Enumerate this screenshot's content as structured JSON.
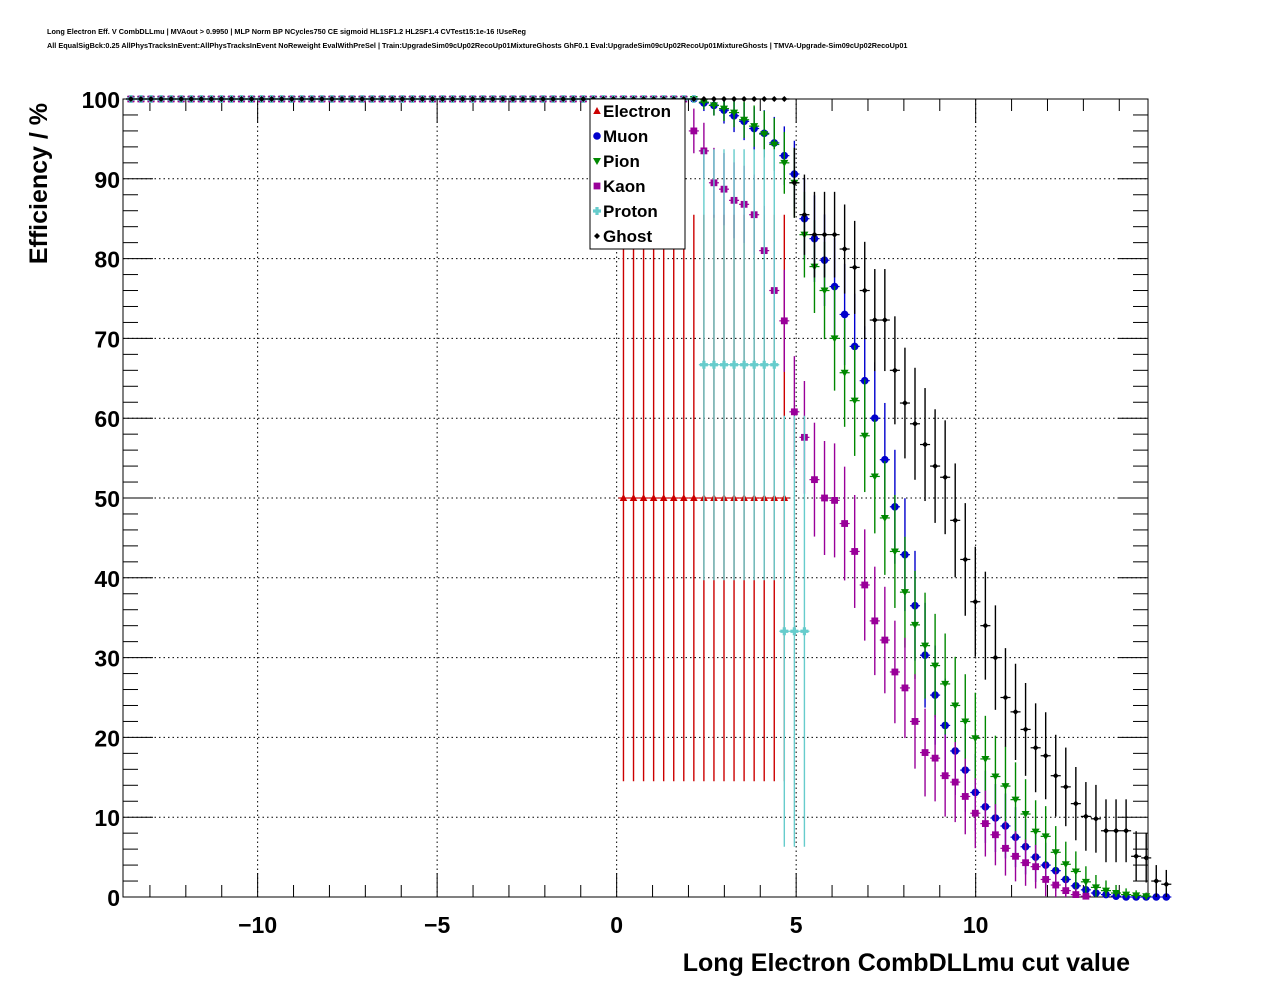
{
  "header": {
    "title_line1": "Long Electron Eff. V CombDLLmu | MVAout > 0.9950 | MLP Norm BP NCycles750 CE sigmoid HL1SF1.2 HL2SF1.4 CVTest15:1e-16 !UseReg",
    "title_line2": "All EqualSigBck:0.25 AllPhysTracksInEvent:AllPhysTracksInEvent NoReweight EvalWithPreSel | Train:UpgradeSim09cUp02RecoUp01MixtureGhosts GhF0.1 Eval:UpgradeSim09cUp02RecoUp01MixtureGhosts | TMVA-Upgrade-Sim09cUp02RecoUp01"
  },
  "chart_data": {
    "type": "scatter",
    "title": "Long Electron Eff. V CombDLLmu",
    "xlabel": "Long Electron CombDLLmu cut value",
    "ylabel": "Efficiency / %",
    "xlim": [
      -13.75,
      14.8
    ],
    "ylim": [
      0,
      100
    ],
    "grid": true,
    "legend_position": "top-center",
    "x_ticks": [
      -10,
      -5,
      0,
      5,
      10
    ],
    "x_tick_labels": [
      "−10",
      "−5",
      "0",
      "5",
      "10"
    ],
    "y_ticks": [
      0,
      10,
      20,
      30,
      40,
      50,
      60,
      70,
      80,
      90,
      100
    ],
    "y_tick_labels": [
      "0",
      "10",
      "20",
      "30",
      "40",
      "50",
      "60",
      "70",
      "80",
      "90",
      "100"
    ],
    "bin_start": -13.53,
    "bin_width": 0.28,
    "series": [
      {
        "name": "Electron",
        "color": "#cc0000",
        "marker": "triangle-up",
        "first_bin": 0,
        "values": [
          100,
          100,
          100,
          100,
          100,
          100,
          100,
          100,
          100,
          100,
          100,
          100,
          100,
          100,
          100,
          100,
          100,
          100,
          100,
          100,
          100,
          100,
          100,
          100,
          100,
          100,
          100,
          100,
          100,
          100,
          100,
          100,
          100,
          100,
          100,
          100,
          100,
          100,
          100,
          100,
          100,
          100,
          100,
          100,
          100,
          100,
          100,
          100,
          100,
          50,
          50,
          50,
          50,
          50,
          50,
          50,
          50,
          50,
          50,
          50,
          50,
          50,
          50,
          50,
          50,
          50
        ],
        "err_low": [
          0,
          0,
          0,
          0,
          0,
          0,
          0,
          0,
          0,
          0,
          0,
          0,
          0,
          0,
          0,
          0,
          0,
          0,
          0,
          0,
          0,
          0,
          0,
          0,
          0,
          0,
          0,
          0,
          0,
          0,
          0,
          0,
          0,
          0,
          0,
          0,
          0,
          0,
          0,
          0,
          0,
          0,
          0,
          0,
          0,
          0,
          0,
          0,
          0,
          35.5,
          35.5,
          35.5,
          35.5,
          35.5,
          35.5,
          35.5,
          35.5,
          35.5,
          35.5,
          35.5,
          35.5,
          35.5,
          35.5,
          35.5,
          35.5,
          35.5
        ],
        "err_high": [
          0,
          0,
          0,
          0,
          0,
          0,
          0,
          0,
          0,
          0,
          0,
          0,
          0,
          0,
          0,
          0,
          0,
          0,
          0,
          0,
          0,
          0,
          0,
          0,
          0,
          0,
          0,
          0,
          0,
          0,
          0,
          0,
          0,
          0,
          0,
          0,
          0,
          0,
          0,
          0,
          0,
          0,
          0,
          0,
          0,
          0,
          0,
          0,
          0,
          35.5,
          35.5,
          35.5,
          35.5,
          35.5,
          35.5,
          35.5,
          35.5,
          35.5,
          35.5,
          35.5,
          35.5,
          35.5,
          35.5,
          35.5,
          35.5,
          35.5
        ]
      },
      {
        "name": "Muon",
        "color": "#0000cc",
        "marker": "circle",
        "first_bin": 0,
        "values": [
          100,
          100,
          100,
          100,
          100,
          100,
          100,
          100,
          100,
          100,
          100,
          100,
          100,
          100,
          100,
          100,
          100,
          100,
          100,
          100,
          100,
          100,
          100,
          100,
          100,
          100,
          100,
          100,
          100,
          100,
          100,
          100,
          100,
          100,
          100,
          100,
          100,
          100,
          100,
          100,
          100,
          100,
          100,
          100,
          100,
          100,
          100,
          100,
          100,
          100,
          100,
          100,
          100,
          100,
          100,
          100,
          100,
          99.5,
          99.2,
          98.6,
          97.9,
          97.2,
          96.3,
          95.7,
          94.5,
          92.9,
          90.6,
          85.0,
          82.5,
          79.8,
          76.5,
          73.0,
          69.0,
          64.7,
          60.0,
          54.8,
          48.9,
          42.9,
          36.5,
          30.3,
          25.3,
          21.5,
          18.3,
          15.9,
          13.1,
          11.3,
          9.9,
          8.9,
          7.5,
          6.3,
          5.0,
          4.0,
          3.3,
          2.2,
          1.4,
          0.9,
          0.5,
          0.3,
          0.1,
          0,
          0,
          0,
          0,
          0
        ]
      },
      {
        "name": "Pion",
        "color": "#008800",
        "marker": "triangle-down",
        "first_bin": 0,
        "values": [
          100,
          100,
          100,
          100,
          100,
          100,
          100,
          100,
          100,
          100,
          100,
          100,
          100,
          100,
          100,
          100,
          100,
          100,
          100,
          100,
          100,
          100,
          100,
          100,
          100,
          100,
          100,
          100,
          100,
          100,
          100,
          100,
          100,
          100,
          100,
          100,
          100,
          100,
          100,
          100,
          100,
          100,
          100,
          100,
          100,
          100,
          100,
          100,
          100,
          100,
          100,
          100,
          100,
          100,
          100,
          100,
          100,
          99.6,
          99.2,
          98.8,
          98.3,
          97.4,
          96.6,
          95.6,
          94.3,
          92.0,
          89.5,
          83.0,
          79.0,
          76.0,
          70.0,
          65.7,
          62.2,
          57.8,
          52.7,
          47.5,
          43.3,
          38.2,
          34.1,
          31.5,
          29.0,
          26.7,
          24.0,
          22.0,
          19.9,
          17.3,
          15.1,
          13.9,
          12.2,
          10.4,
          8.2,
          7.6,
          5.6,
          4.1,
          3.2,
          1.9,
          1.2,
          0.8,
          0.5,
          0.3,
          0.2,
          0.1
        ]
      },
      {
        "name": "Kaon",
        "color": "#990099",
        "marker": "square",
        "first_bin": 0,
        "values": [
          100,
          100,
          100,
          100,
          100,
          100,
          100,
          100,
          100,
          100,
          100,
          100,
          100,
          100,
          100,
          100,
          100,
          100,
          100,
          100,
          100,
          100,
          100,
          100,
          100,
          100,
          100,
          100,
          100,
          100,
          100,
          100,
          100,
          100,
          100,
          100,
          100,
          100,
          100,
          100,
          100,
          100,
          100,
          100,
          100,
          100,
          100,
          100,
          100,
          100,
          100,
          100,
          100,
          100,
          100,
          100,
          96.0,
          93.5,
          89.5,
          88.7,
          87.3,
          86.8,
          85.5,
          81.0,
          76.0,
          72.2,
          60.8,
          57.6,
          52.3,
          50.0,
          49.7,
          46.8,
          43.3,
          39.1,
          34.6,
          32.2,
          28.2,
          26.2,
          22.0,
          18.1,
          17.4,
          15.2,
          14.4,
          12.6,
          10.5,
          9.2,
          7.8,
          6.1,
          5.1,
          4.3,
          3.8,
          2.2,
          1.5,
          0.8,
          0.3,
          0.1
        ]
      },
      {
        "name": "Proton",
        "color": "#66cccc",
        "marker": "plus",
        "first_bin": 0,
        "values": [
          100,
          100,
          100,
          100,
          100,
          100,
          100,
          100,
          100,
          100,
          100,
          100,
          100,
          100,
          100,
          100,
          100,
          100,
          100,
          100,
          100,
          100,
          100,
          100,
          100,
          100,
          100,
          100,
          100,
          100,
          100,
          100,
          100,
          100,
          100,
          100,
          100,
          100,
          100,
          100,
          100,
          100,
          100,
          100,
          100,
          100,
          100,
          100,
          100,
          100,
          100,
          100,
          100,
          100,
          100,
          100,
          100,
          66.7,
          66.7,
          66.7,
          66.7,
          66.7,
          66.7,
          66.7,
          66.7,
          33.3,
          33.3,
          33.3
        ],
        "err_low": [
          0,
          0,
          0,
          0,
          0,
          0,
          0,
          0,
          0,
          0,
          0,
          0,
          0,
          0,
          0,
          0,
          0,
          0,
          0,
          0,
          0,
          0,
          0,
          0,
          0,
          0,
          0,
          0,
          0,
          0,
          0,
          0,
          0,
          0,
          0,
          0,
          0,
          0,
          0,
          0,
          0,
          0,
          0,
          0,
          0,
          0,
          0,
          0,
          0,
          0,
          0,
          0,
          0,
          0,
          0,
          0,
          0,
          27,
          27,
          27,
          27,
          27,
          27,
          27,
          27,
          27,
          27,
          27
        ],
        "err_high": [
          0,
          0,
          0,
          0,
          0,
          0,
          0,
          0,
          0,
          0,
          0,
          0,
          0,
          0,
          0,
          0,
          0,
          0,
          0,
          0,
          0,
          0,
          0,
          0,
          0,
          0,
          0,
          0,
          0,
          0,
          0,
          0,
          0,
          0,
          0,
          0,
          0,
          0,
          0,
          0,
          0,
          0,
          0,
          0,
          0,
          0,
          0,
          0,
          0,
          0,
          0,
          0,
          0,
          0,
          0,
          0,
          0,
          27,
          27,
          27,
          27,
          27,
          27,
          27,
          27,
          27,
          27,
          27
        ]
      },
      {
        "name": "Ghost",
        "color": "#000000",
        "marker": "diamond",
        "first_bin": 0,
        "values": [
          100,
          100,
          100,
          100,
          100,
          100,
          100,
          100,
          100,
          100,
          100,
          100,
          100,
          100,
          100,
          100,
          100,
          100,
          100,
          100,
          100,
          100,
          100,
          100,
          100,
          100,
          100,
          100,
          100,
          100,
          100,
          100,
          100,
          100,
          100,
          100,
          100,
          100,
          100,
          100,
          100,
          100,
          100,
          100,
          100,
          100,
          100,
          100,
          100,
          100,
          100,
          100,
          100,
          100,
          100,
          100,
          100,
          100,
          100,
          100,
          100,
          100,
          100,
          100,
          100,
          100,
          89.5,
          85.5,
          83.0,
          83.0,
          83.0,
          81.2,
          78.9,
          76.0,
          72.3,
          72.3,
          66.0,
          61.9,
          59.3,
          56.7,
          54.0,
          52.6,
          47.2,
          42.3,
          37.0,
          34.0,
          30.0,
          25.0,
          23.2,
          21.0,
          18.7,
          17.7,
          15.2,
          13.8,
          11.7,
          10.1,
          9.8,
          8.3,
          8.3,
          8.3,
          5.1,
          4.9,
          2.0,
          1.6
        ]
      }
    ]
  },
  "legend": {
    "items": [
      "Electron",
      "Muon",
      "Pion",
      "Kaon",
      "Proton",
      "Ghost"
    ]
  }
}
